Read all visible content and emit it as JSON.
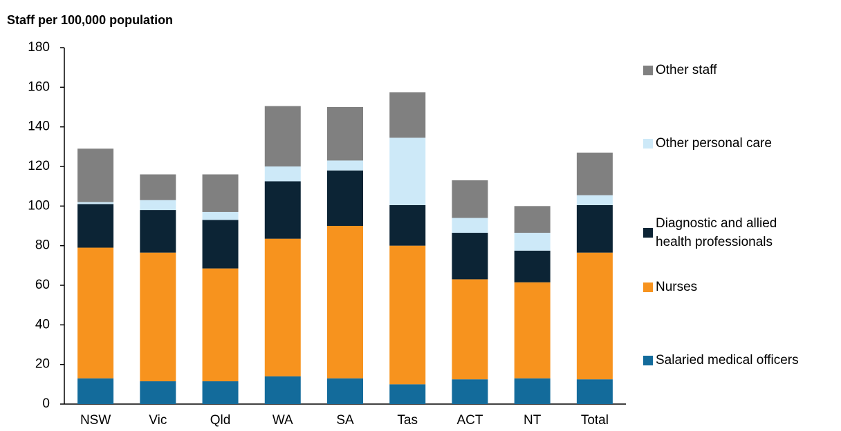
{
  "chart_data": {
    "type": "stacked_bar",
    "title": "Staff per 100,000 population",
    "categories": [
      "NSW",
      "Vic",
      "Qld",
      "WA",
      "SA",
      "Tas",
      "ACT",
      "NT",
      "Total"
    ],
    "series": [
      {
        "name": "Salaried medical officers",
        "color": "#136b9b",
        "values": [
          13,
          11.5,
          11.5,
          14,
          13,
          10,
          12.5,
          13,
          12.5
        ]
      },
      {
        "name": "Nurses",
        "color": "#f7931e",
        "values": [
          66,
          65,
          57,
          69.5,
          77,
          70,
          50.5,
          48.5,
          64
        ]
      },
      {
        "name": "Diagnostic and allied health professionals",
        "color": "#0c2435",
        "values": [
          22,
          21.5,
          24.5,
          29,
          28,
          20.5,
          23.5,
          16,
          24
        ]
      },
      {
        "name": "Other personal care",
        "color": "#cde9f8",
        "values": [
          1,
          5,
          4,
          7.5,
          5,
          34,
          7.5,
          9,
          5
        ]
      },
      {
        "name": "Other staff",
        "color": "#808080",
        "values": [
          27,
          13,
          19,
          30.5,
          27,
          23,
          19,
          13.5,
          21.5
        ]
      }
    ],
    "ylim": [
      0,
      180
    ],
    "yticks": [
      0,
      20,
      40,
      60,
      80,
      100,
      120,
      140,
      160,
      180
    ],
    "grid": false
  }
}
